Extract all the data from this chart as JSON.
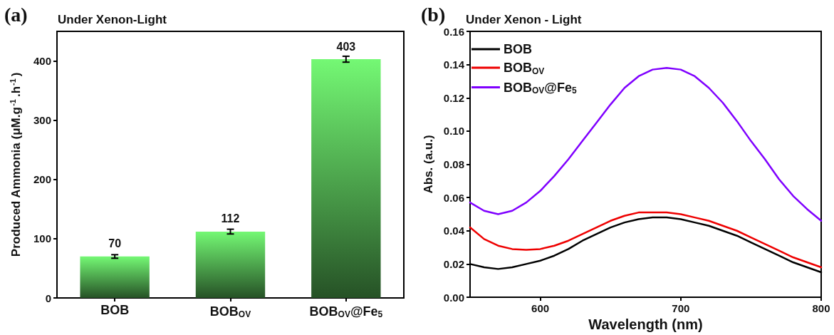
{
  "chart_data": [
    {
      "type": "bar",
      "title": "Under Xenon-Light",
      "ylabel": "Produced Ammonia (μM.g$^{-1}$.h$^{-1}$)",
      "categories": [
        "BOB",
        "BOB$_{OV}$",
        "BOB$_{OV}$@Fe$_{5}$"
      ],
      "values": [
        70,
        112,
        403
      ],
      "errors": [
        3,
        4,
        5
      ],
      "color": "#74f874",
      "ylim": [
        0,
        450
      ],
      "yticks": [
        0,
        100,
        200,
        300,
        400
      ],
      "grid": false,
      "data_labels": true,
      "annotations": [
        "(a)"
      ]
    },
    {
      "type": "line",
      "title": "Under Xenon - Light",
      "xlabel": "Wavelength (nm)",
      "ylabel": "Abs. (a.u.)",
      "x": [
        550,
        560,
        570,
        580,
        590,
        600,
        610,
        620,
        630,
        640,
        650,
        660,
        670,
        680,
        690,
        700,
        710,
        720,
        730,
        740,
        750,
        760,
        770,
        780,
        790,
        800
      ],
      "series": [
        {
          "name": "BOB",
          "color": "#000000",
          "values": [
            0.02,
            0.018,
            0.017,
            0.018,
            0.02,
            0.022,
            0.025,
            0.029,
            0.034,
            0.038,
            0.042,
            0.045,
            0.047,
            0.048,
            0.048,
            0.047,
            0.045,
            0.043,
            0.04,
            0.037,
            0.033,
            0.029,
            0.025,
            0.021,
            0.018,
            0.015
          ]
        },
        {
          "name": "BOB$_{OV}$",
          "color": "#ee0000",
          "values": [
            0.042,
            0.035,
            0.031,
            0.029,
            0.0285,
            0.029,
            0.031,
            0.034,
            0.038,
            0.042,
            0.046,
            0.049,
            0.051,
            0.051,
            0.051,
            0.05,
            0.048,
            0.046,
            0.043,
            0.04,
            0.036,
            0.032,
            0.028,
            0.024,
            0.021,
            0.018
          ]
        },
        {
          "name": "BOB$_{OV}$@Fe$_{5}$",
          "color": "#7f00ff",
          "values": [
            0.057,
            0.052,
            0.05,
            0.052,
            0.057,
            0.064,
            0.073,
            0.083,
            0.094,
            0.105,
            0.116,
            0.126,
            0.133,
            0.137,
            0.138,
            0.137,
            0.133,
            0.126,
            0.117,
            0.106,
            0.094,
            0.083,
            0.071,
            0.061,
            0.053,
            0.046
          ]
        }
      ],
      "xlim": [
        550,
        800
      ],
      "xticks": [
        600,
        700,
        800
      ],
      "ylim": [
        0,
        0.16
      ],
      "yticks": [
        {
          "value": 0,
          "label": "0.00"
        },
        0.02,
        0.04,
        0.06,
        0.08,
        {
          "value": 0.1,
          "label": "0.10"
        },
        0.12,
        0.14,
        0.16
      ],
      "grid": false,
      "legend": "top left",
      "line_style": "solid",
      "annotations": [
        "(b)"
      ]
    }
  ]
}
